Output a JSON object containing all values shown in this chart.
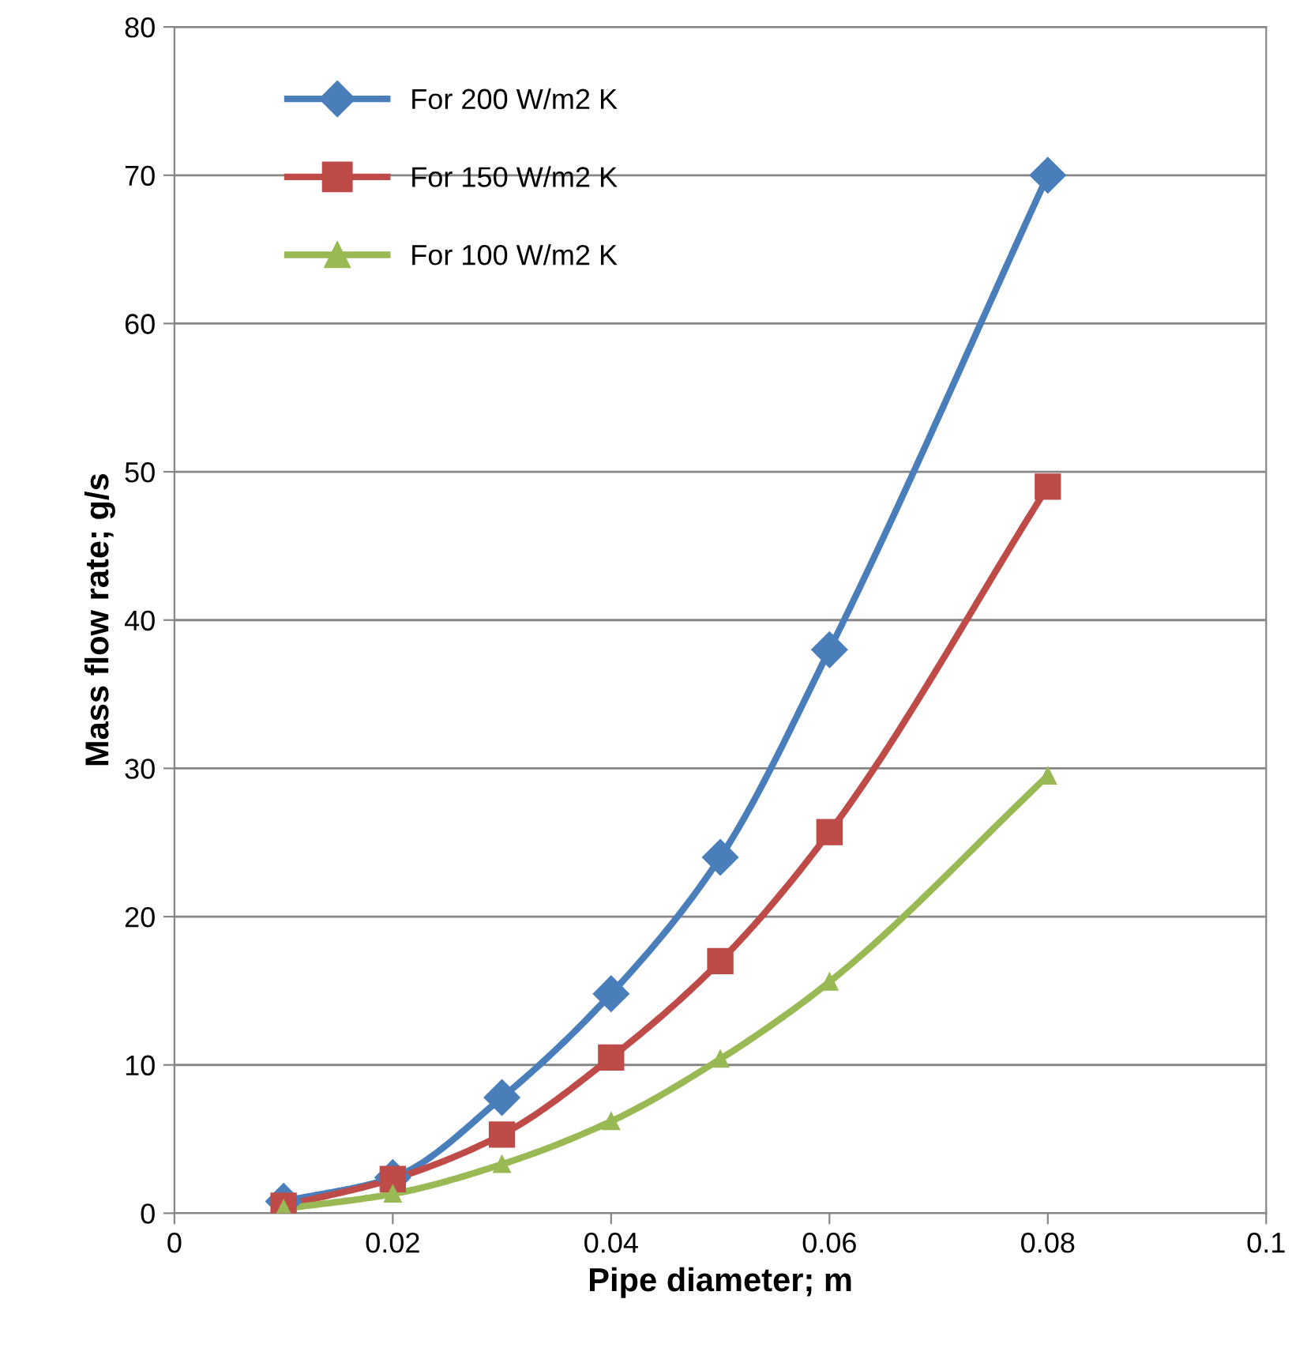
{
  "chart_data": {
    "type": "line",
    "xlabel": "Pipe diameter; m",
    "ylabel": "Mass flow rate; g/s",
    "xlim": [
      0,
      0.1
    ],
    "xticks": [
      0,
      0.02,
      0.04,
      0.06,
      0.08,
      0.1
    ],
    "ylim": [
      0,
      80
    ],
    "yticks": [
      0,
      10,
      20,
      30,
      40,
      50,
      60,
      70,
      80
    ],
    "grid": "y",
    "legend": "top left",
    "line_style": "solid",
    "x": [
      0.01,
      0.02,
      0.03,
      0.04,
      0.05,
      0.06,
      0.08
    ],
    "series": [
      {
        "name": "For 200 W/m2 K",
        "color": "#4a7ebb",
        "marker": "diamond",
        "values": [
          0.8,
          2.4,
          7.8,
          14.8,
          24.0,
          38.0,
          70.0
        ]
      },
      {
        "name": "For 150 W/m2 K",
        "color": "#be4b48",
        "marker": "square",
        "values": [
          0.5,
          2.3,
          5.3,
          10.5,
          17.0,
          25.7,
          49.0
        ]
      },
      {
        "name": "For 100 W/m2 K",
        "color": "#98b954",
        "marker": "triangle",
        "values": [
          0.3,
          1.3,
          3.3,
          6.2,
          10.4,
          15.6,
          29.5
        ]
      }
    ]
  }
}
